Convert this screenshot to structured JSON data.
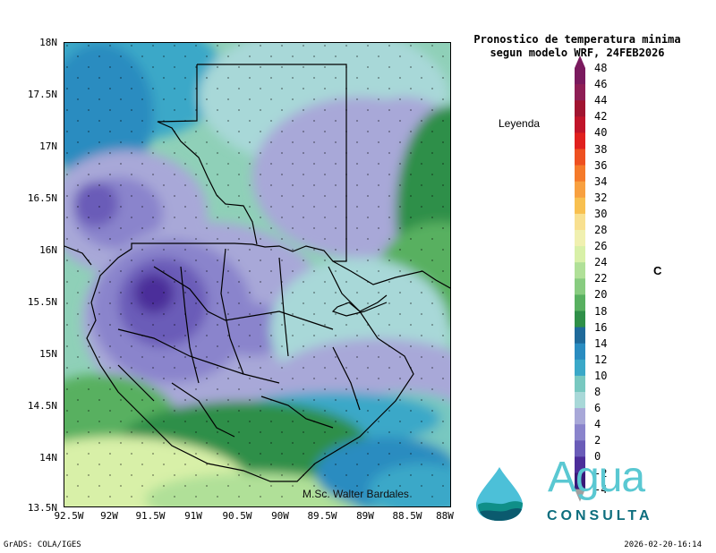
{
  "title": {
    "line1": "Pronostico de temperatura minima",
    "line2": "segun modelo WRF, 24FEB2026"
  },
  "legend": {
    "title": "Leyenda",
    "unit": "C",
    "levels": [
      "48",
      "46",
      "44",
      "42",
      "40",
      "38",
      "36",
      "34",
      "32",
      "30",
      "28",
      "26",
      "24",
      "22",
      "20",
      "18",
      "16",
      "14",
      "12",
      "10",
      "8",
      "6",
      "4",
      "2",
      "0",
      "-2",
      "-4"
    ],
    "colors": [
      "#7a1a5e",
      "#8e1e55",
      "#a01430",
      "#c0142a",
      "#e0201e",
      "#ee5020",
      "#f57a2a",
      "#f8a040",
      "#f8c050",
      "#f8e090",
      "#f0f0b0",
      "#d8f0a8",
      "#b0e098",
      "#88cc80",
      "#58b060",
      "#2f8f48",
      "#1f6a9a",
      "#2a8cc0",
      "#3aa8c8",
      "#78c8c0",
      "#a8d8d8",
      "#a8a8d8",
      "#8a84cc",
      "#6a5cb8",
      "#4c2e9a",
      "#3a1878"
    ]
  },
  "axes": {
    "y_ticks": [
      "18N",
      "17.5N",
      "17N",
      "16.5N",
      "16N",
      "15.5N",
      "15N",
      "14.5N",
      "14N",
      "13.5N"
    ],
    "x_ticks": [
      "92.5W",
      "92W",
      "91.5W",
      "91W",
      "90.5W",
      "90W",
      "89.5W",
      "89W",
      "88.5W",
      "88W"
    ]
  },
  "signature": "M.Sc. Walter Bardales",
  "logo": {
    "word": "Agua",
    "sub": "CONSULTA",
    "drop_colors": [
      "#4cc0d8",
      "#0f8f88",
      "#0b5a6e"
    ]
  },
  "footer": {
    "left": "GrADS: COLA/IGES",
    "right": "2026-02-20-16:14"
  }
}
